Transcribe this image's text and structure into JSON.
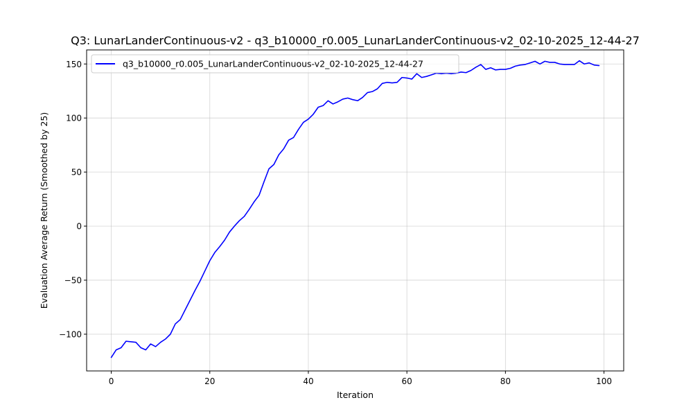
{
  "chart_data": {
    "type": "line",
    "title": "Q3: LunarLanderContinuous-v2 - q3_b10000_r0.005_LunarLanderContinuous-v2_02-10-2025_12-44-27",
    "xlabel": "Iteration",
    "ylabel": "Evaluation Average Return (Smoothed by 25)",
    "xlim": [
      -5,
      104
    ],
    "ylim": [
      -134,
      163
    ],
    "xticks": [
      0,
      20,
      40,
      60,
      80,
      100
    ],
    "yticks": [
      -100,
      -50,
      0,
      50,
      100,
      150
    ],
    "xtick_labels": [
      "0",
      "20",
      "40",
      "60",
      "80",
      "100"
    ],
    "ytick_labels": [
      "−100",
      "−50",
      "0",
      "50",
      "100",
      "150"
    ],
    "grid": true,
    "legend_position": "upper-left",
    "series": [
      {
        "name": "q3_b10000_r0.005_LunarLanderContinuous-v2_02-10-2025_12-44-27",
        "color": "#0000ff",
        "x": [
          0,
          1,
          2,
          3,
          4,
          5,
          6,
          7,
          8,
          9,
          10,
          11,
          12,
          13,
          14,
          15,
          16,
          17,
          18,
          19,
          20,
          21,
          22,
          23,
          24,
          25,
          26,
          27,
          28,
          29,
          30,
          31,
          32,
          33,
          34,
          35,
          36,
          37,
          38,
          39,
          40,
          41,
          42,
          43,
          44,
          45,
          46,
          47,
          48,
          49,
          50,
          51,
          52,
          53,
          54,
          55,
          56,
          57,
          58,
          59,
          60,
          61,
          62,
          63,
          64,
          65,
          66,
          67,
          68,
          69,
          70,
          71,
          72,
          73,
          74,
          75,
          76,
          77,
          78,
          79,
          80,
          81,
          82,
          83,
          84,
          85,
          86,
          87,
          88,
          89,
          90,
          91,
          92,
          93,
          94,
          95,
          96,
          97,
          98,
          99
        ],
        "y": [
          -121.5,
          -114.5,
          -112.5,
          -106.5,
          -107.0,
          -107.5,
          -112.5,
          -114.5,
          -109.0,
          -111.5,
          -107.5,
          -104.5,
          -100.0,
          -90.5,
          -86.5,
          -77.5,
          -68.5,
          -59.5,
          -51.0,
          -41.5,
          -32.0,
          -24.5,
          -19.0,
          -13.0,
          -5.5,
          0.0,
          5.0,
          9.0,
          15.5,
          22.5,
          28.5,
          41.0,
          53.0,
          57.0,
          66.0,
          71.5,
          79.5,
          82.0,
          89.5,
          96.0,
          99.0,
          103.5,
          110.0,
          111.5,
          116.0,
          113.0,
          115.0,
          117.5,
          118.5,
          117.0,
          116.0,
          119.0,
          123.5,
          124.5,
          127.0,
          132.0,
          133.0,
          132.5,
          133.0,
          137.5,
          137.0,
          136.0,
          141.0,
          137.5,
          138.5,
          140.0,
          141.5,
          141.0,
          141.5,
          141.0,
          141.5,
          142.5,
          142.0,
          144.0,
          147.0,
          149.5,
          145.0,
          146.5,
          144.5,
          145.0,
          145.0,
          146.0,
          148.0,
          149.0,
          149.5,
          151.0,
          152.5,
          150.0,
          152.5,
          151.5,
          151.5,
          150.0,
          149.5,
          149.5,
          149.5,
          153.0,
          150.0,
          151.0,
          149.0,
          148.5
        ]
      }
    ]
  }
}
